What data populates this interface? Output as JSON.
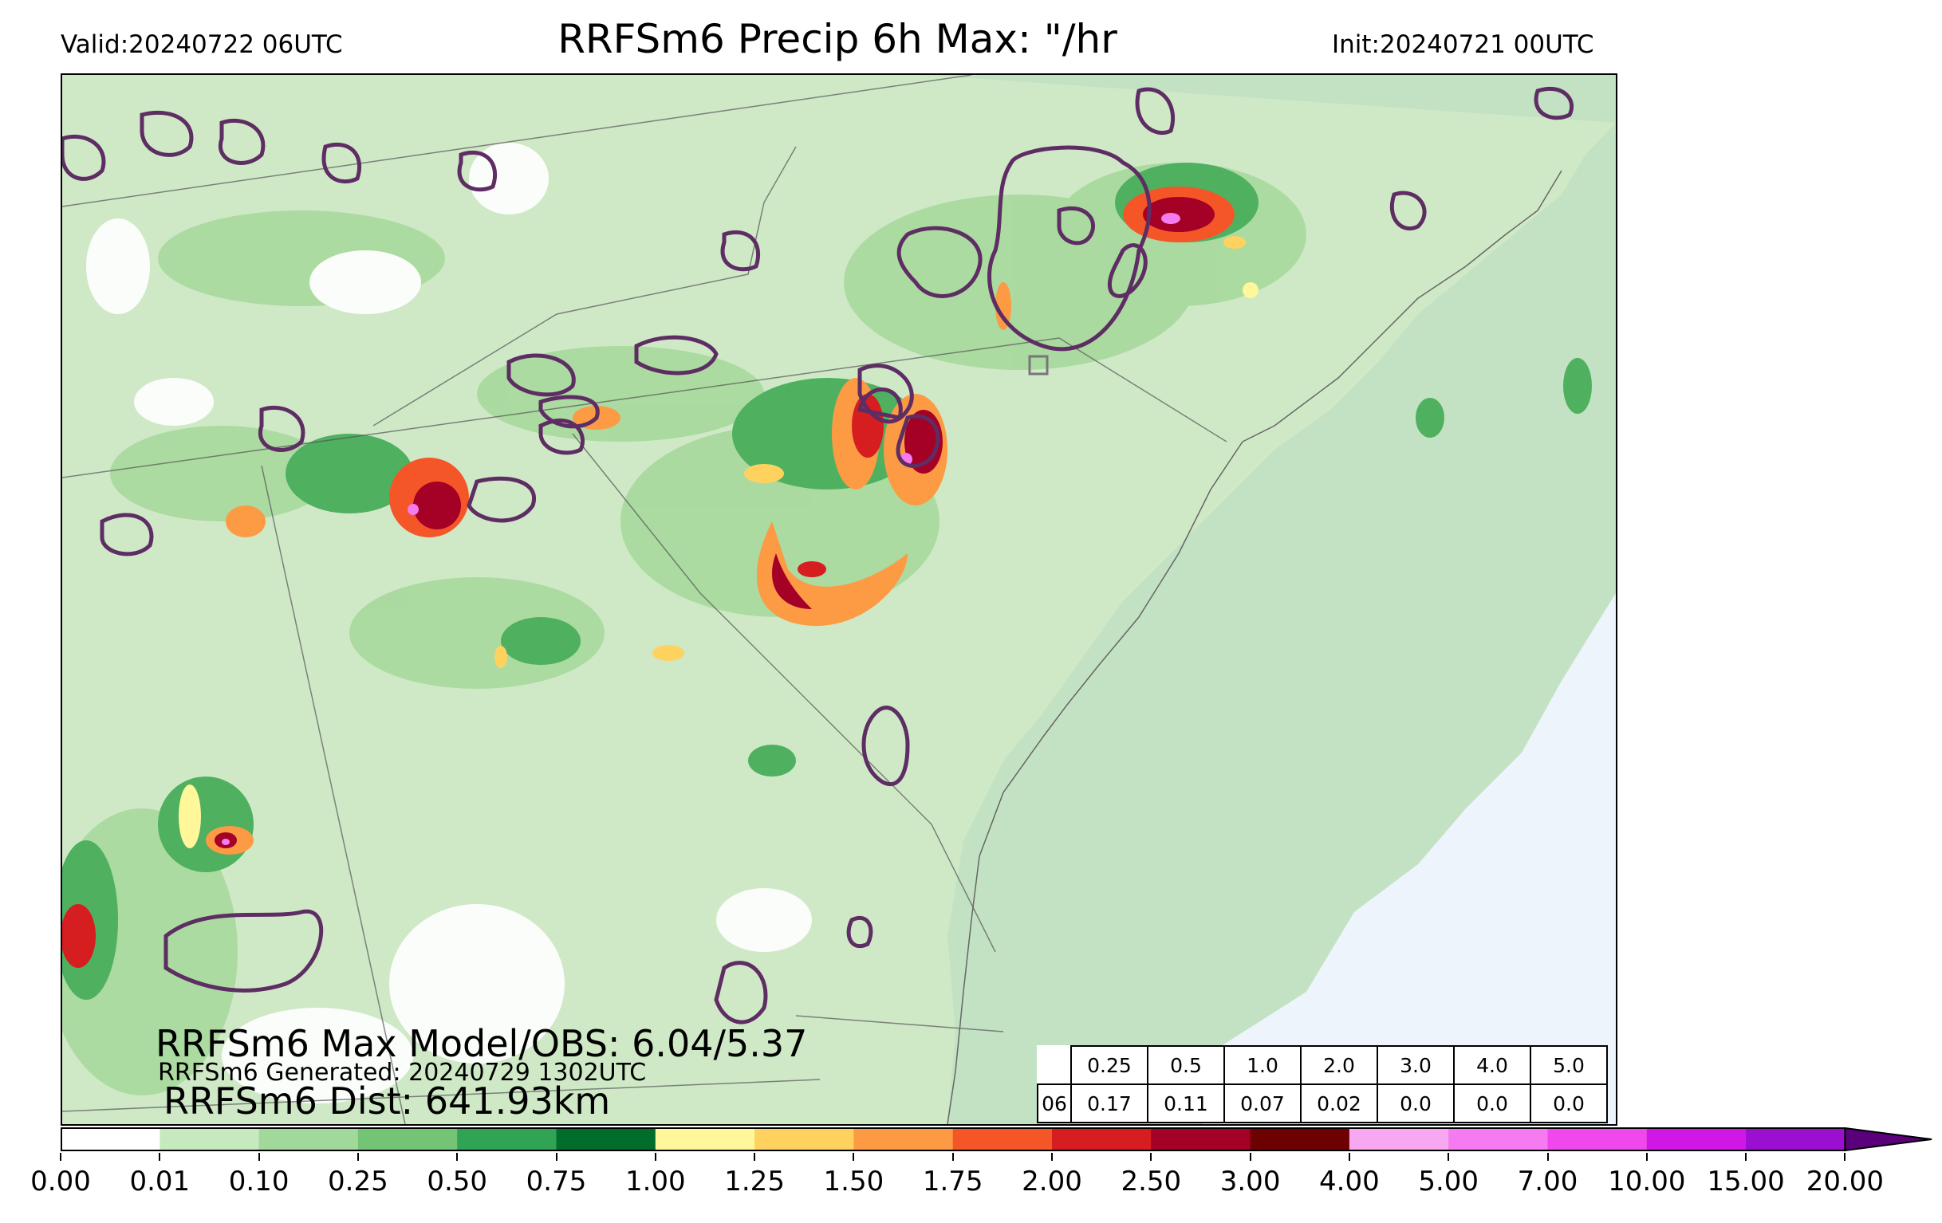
{
  "header": {
    "valid": "Valid:20240722 06UTC",
    "title": "RRFSm6 Precip 6h Max: \"/hr",
    "init": "Init:20240721 00UTC"
  },
  "stats": {
    "max_line": "RRFSm6 Max Model/OBS: 6.04/5.37",
    "generated_line": "RRFSm6 Generated: 20240729 1302UTC",
    "dist_line": "RRFSm6 Dist: 641.93km"
  },
  "table": {
    "thresholds": [
      "0.25",
      "0.5",
      "1.0",
      "2.0",
      "3.0",
      "4.0",
      "5.0"
    ],
    "row_label": "06",
    "values": [
      "0.17",
      "0.11",
      "0.07",
      "0.02",
      "0.0",
      "0.0",
      "0.0"
    ]
  },
  "colorbar": {
    "ticks": [
      "0.00",
      "0.01",
      "0.10",
      "0.25",
      "0.50",
      "0.75",
      "1.00",
      "1.25",
      "1.50",
      "1.75",
      "2.00",
      "2.50",
      "3.00",
      "4.00",
      "5.00",
      "7.00",
      "10.00",
      "15.00",
      "20.00"
    ],
    "colors": [
      "#ffffff",
      "#c7e9c0",
      "#a1d99b",
      "#74c476",
      "#31a354",
      "#006d2c",
      "#fff79a",
      "#ffd25f",
      "#fd9a44",
      "#f45628",
      "#d61d1f",
      "#a50026",
      "#6d0000",
      "#f7a8f0",
      "#f57cf0",
      "#f048ec",
      "#d117e6",
      "#9a0fd0",
      "#5a007a"
    ]
  },
  "map": {
    "land_color": "#c9e7c2",
    "ocean_color": "#c1e2c4",
    "far_ocean_color": "#eef4fb",
    "contour_color": "#5e2d63"
  }
}
